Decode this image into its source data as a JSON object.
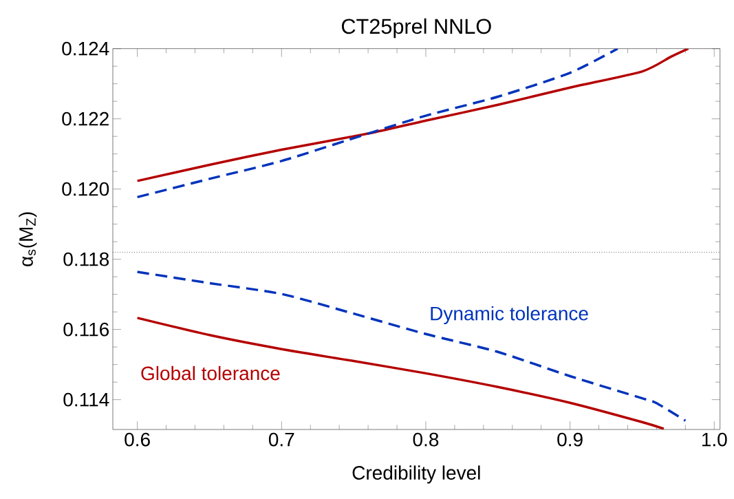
{
  "chart_data": {
    "type": "line",
    "title": "CT25prel NNLO",
    "xlabel": "Credibility level",
    "ylabel": "α$_{s}$(M$_{Z}$)",
    "xlim": [
      0.583,
      1.004
    ],
    "ylim": [
      0.11315,
      0.124
    ],
    "xticks": [
      {
        "value": 0.6,
        "label": "0.6"
      },
      {
        "value": 0.7,
        "label": "0.7"
      },
      {
        "value": 0.8,
        "label": "0.8"
      },
      {
        "value": 0.9,
        "label": "0.9"
      },
      {
        "value": 1.0,
        "label": "1.0"
      }
    ],
    "yticks": [
      {
        "value": 0.114,
        "label": "0.114"
      },
      {
        "value": 0.116,
        "label": "0.116"
      },
      {
        "value": 0.118,
        "label": "0.118"
      },
      {
        "value": 0.12,
        "label": "0.120"
      },
      {
        "value": 0.122,
        "label": "0.122"
      },
      {
        "value": 0.124,
        "label": "0.124"
      }
    ],
    "grid": false,
    "marker": "none",
    "ref_lines": [
      {
        "axis": "y",
        "value": 0.1182,
        "color": "#000000",
        "line_style": "dotted"
      }
    ],
    "series": [
      {
        "name": "Global tolerance",
        "color": "#b40000",
        "line_style": "solid",
        "x": [
          0.6,
          0.65,
          0.7,
          0.76,
          0.8,
          0.85,
          0.9,
          0.95,
          0.97,
          0.982
        ],
        "values": [
          0.12023,
          0.12069,
          0.12112,
          0.12158,
          0.12195,
          0.1224,
          0.12289,
          0.12335,
          0.12377,
          0.124
        ]
      },
      {
        "color": "#0033bb",
        "line_style": "dashed",
        "x": [
          0.6,
          0.65,
          0.7,
          0.76,
          0.8,
          0.85,
          0.9,
          0.933
        ],
        "values": [
          0.11977,
          0.12029,
          0.1208,
          0.12158,
          0.12209,
          0.12263,
          0.12331,
          0.124
        ]
      },
      {
        "color": "#b40000",
        "line_style": "solid",
        "x": [
          0.6,
          0.65,
          0.7,
          0.75,
          0.8,
          0.85,
          0.9,
          0.95,
          0.965
        ],
        "values": [
          0.11633,
          0.11584,
          0.11544,
          0.1151,
          0.11475,
          0.11436,
          0.11391,
          0.11336,
          0.11317
        ]
      },
      {
        "name": "Dynamic tolerance",
        "color": "#0033bb",
        "line_style": "dashed",
        "x": [
          0.6,
          0.65,
          0.7,
          0.75,
          0.8,
          0.85,
          0.9,
          0.95,
          0.96,
          0.98
        ],
        "values": [
          0.11764,
          0.11732,
          0.11701,
          0.11645,
          0.11587,
          0.11536,
          0.11467,
          0.11404,
          0.1139,
          0.1134
        ]
      }
    ]
  }
}
